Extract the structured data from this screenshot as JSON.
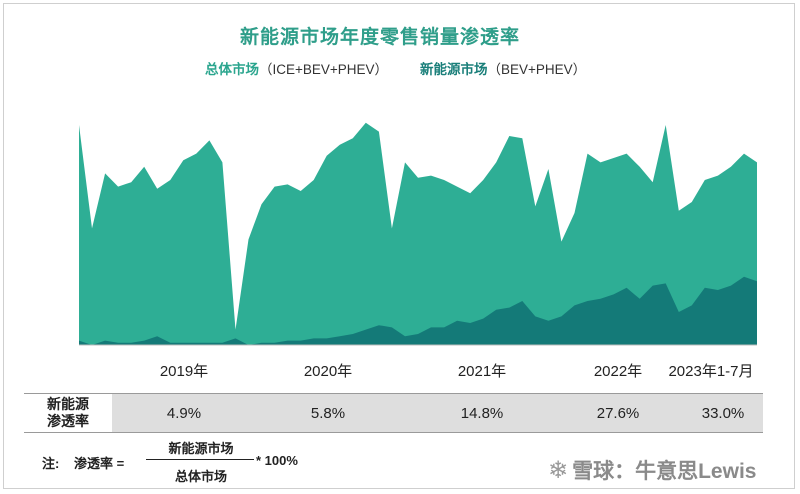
{
  "title": "新能源市场年度零售销量渗透率",
  "legend": {
    "item1_name": "总体市场",
    "item1_detail": "（ICE+BEV+PHEV）",
    "item2_name": "新能源市场",
    "item2_detail": "（BEV+PHEV）"
  },
  "colors": {
    "total": "#2eae95",
    "nev": "#147a78",
    "title": "#2f9e8a"
  },
  "chart_data": {
    "type": "area",
    "title": "新能源市场年度零售销量渗透率",
    "x_tick_labels": [
      "2019年",
      "2020年",
      "2021年",
      "2022年",
      "2023年1-7月"
    ],
    "series": [
      {
        "name": "总体市场（ICE+BEV+PHEV）",
        "values": [
          100,
          53,
          78,
          72,
          74,
          81,
          71,
          75,
          84,
          87,
          93,
          83,
          7,
          48,
          64,
          72,
          73,
          70,
          75,
          86,
          91,
          94,
          101,
          97,
          53,
          83,
          76,
          77,
          75,
          72,
          69,
          75,
          83,
          95,
          94,
          63,
          80,
          47,
          60,
          87,
          83,
          85,
          87,
          81,
          74,
          100,
          61,
          65,
          75,
          77,
          81,
          87,
          83
        ]
      },
      {
        "name": "新能源市场（BEV+PHEV）",
        "values": [
          2,
          0,
          2,
          1,
          1,
          2,
          4,
          1,
          1,
          1,
          1,
          1,
          3,
          0,
          1,
          1,
          2,
          2,
          3,
          3,
          4,
          5,
          7,
          9,
          8,
          4,
          5,
          8,
          8,
          11,
          10,
          12,
          16,
          17,
          20,
          13,
          11,
          13,
          18,
          20,
          21,
          23,
          26,
          21,
          27,
          28,
          15,
          18,
          26,
          25,
          27,
          31,
          29
        ]
      }
    ],
    "grid": false
  },
  "penetration": {
    "label": "新能源渗透率",
    "label_line1": "新能源",
    "label_line2": "渗透率",
    "values": [
      "4.9%",
      "5.8%",
      "14.8%",
      "27.6%",
      "33.0%"
    ]
  },
  "note": {
    "prefix": "注:",
    "term": "渗透率 =",
    "numerator": "新能源市场",
    "denominator": "总体市场",
    "multiplier": "* 100%"
  },
  "watermark": {
    "glyph": "❄",
    "text": "雪球：牛意思Lewis"
  }
}
